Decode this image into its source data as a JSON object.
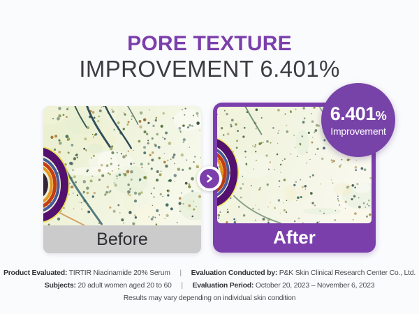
{
  "title": {
    "line1": "PORE TEXTURE",
    "line2": "IMPROVEMENT 6.401%"
  },
  "badge": {
    "value": "6.401",
    "percent": "%",
    "label": "Improvement"
  },
  "comparison": {
    "before_label": "Before",
    "after_label": "After"
  },
  "icons": {
    "between_cards": "chevron-right"
  },
  "footer": {
    "divider": "|",
    "rows": [
      {
        "label1": "Product Evaluated:",
        "value1": "TIRTIR Niacinamide 20% Serum",
        "label2": "Evaluation Conducted by:",
        "value2": "P&K Skin Clinical Research Center Co., Ltd."
      },
      {
        "label1": "Subjects:",
        "value1": "20 adult women aged 20 to 60",
        "label2": "Evaluation Period:",
        "value2": "October 20, 2023 – November 6, 2023"
      }
    ],
    "disclaimer": "Results may vary depending on individual skin condition"
  },
  "colors": {
    "background": "#FAFBFD",
    "accent_purple": "#7B3FAC",
    "badge_purple": "#7843A8",
    "title_dark": "#3C3C41",
    "before_bar_gray": "#CBCBCC",
    "footer_text": "#4B4B50"
  }
}
